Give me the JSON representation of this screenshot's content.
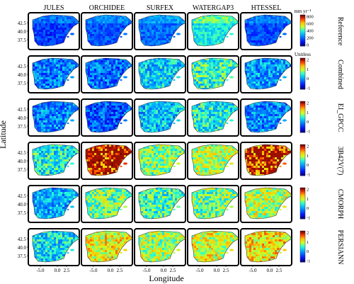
{
  "figure": {
    "columns": [
      "JULES",
      "ORCHIDEE",
      "SURFEX",
      "WATERGAP3",
      "HTESSEL"
    ],
    "rows": [
      {
        "label": "Reference",
        "colorbar_unit": "mm yr⁻¹",
        "ticks": [
          "800",
          "600",
          "400",
          "200",
          "0"
        ],
        "palette": "jet",
        "vmin": 0,
        "vmax": 800
      },
      {
        "label": "Combined",
        "colorbar_unit": "Unitless",
        "ticks": [
          "2",
          "1",
          "0",
          "-1"
        ],
        "palette": "jet",
        "vmin": -1,
        "vmax": 2
      },
      {
        "label": "EI_GPCC",
        "colorbar_unit": "",
        "ticks": [
          "2",
          "1",
          "0",
          "-1"
        ],
        "palette": "jet",
        "vmin": -1,
        "vmax": 2
      },
      {
        "label": "3B42V(7)",
        "colorbar_unit": "",
        "ticks": [
          "2",
          "1",
          "0",
          "-1"
        ],
        "palette": "jet",
        "vmin": -1,
        "vmax": 2
      },
      {
        "label": "CMORPH",
        "colorbar_unit": "",
        "ticks": [
          "2",
          "1",
          "0",
          "-1"
        ],
        "palette": "jet",
        "vmin": -1,
        "vmax": 2
      },
      {
        "label": "PERSIANN",
        "colorbar_unit": "",
        "ticks": [
          "2",
          "1",
          "0",
          "-1"
        ],
        "palette": "jet",
        "vmin": -1,
        "vmax": 2
      }
    ],
    "lat_ticks": [
      "42.5",
      "40.0",
      "37.5"
    ],
    "lon_ticks": [
      "-5.0",
      "0.0",
      "2.5"
    ],
    "xlabel": "Longitude",
    "ylabel": "Latitude",
    "panel_intensity": [
      [
        0.18,
        0.22,
        0.25,
        0.45,
        0.2
      ],
      [
        0.28,
        0.26,
        0.4,
        0.48,
        0.32
      ],
      [
        0.3,
        0.22,
        0.38,
        0.45,
        0.3
      ],
      [
        0.45,
        0.85,
        0.58,
        0.62,
        0.8
      ],
      [
        0.35,
        0.55,
        0.5,
        0.55,
        0.62
      ],
      [
        0.42,
        0.68,
        0.6,
        0.65,
        0.7
      ]
    ]
  }
}
